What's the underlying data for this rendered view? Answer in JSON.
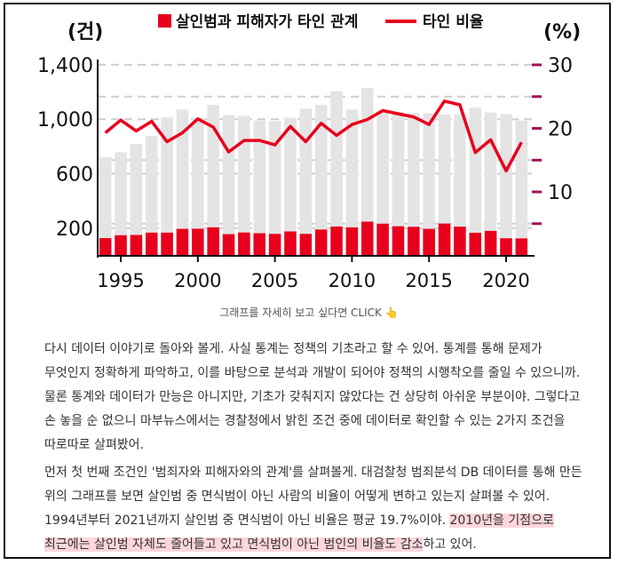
{
  "chart_data": {
    "type": "bar+line",
    "legend": [
      {
        "name": "살인범과 피해자가 타인 관계",
        "kind": "bar",
        "color": "#e8001c"
      },
      {
        "name": "타인 비율",
        "kind": "line",
        "color": "#e8001c"
      }
    ],
    "left_axis_label": "(건)",
    "right_axis_label": "(%)",
    "left_ticks": [
      "1,400",
      "1,000",
      "600",
      "200"
    ],
    "left_tick_values": [
      1400,
      1000,
      600,
      200
    ],
    "right_ticks": [
      "30",
      "20",
      "10"
    ],
    "right_tick_values": [
      30,
      20,
      10
    ],
    "right_minor_values": [
      25,
      15,
      5
    ],
    "left_ylim": [
      0,
      1400
    ],
    "right_ylim": [
      0,
      30
    ],
    "x_tick_labels": [
      "1995",
      "2000",
      "2005",
      "2010",
      "2015",
      "2020"
    ],
    "years": [
      1994,
      1995,
      1996,
      1997,
      1998,
      1999,
      2000,
      2001,
      2002,
      2003,
      2004,
      2005,
      2006,
      2007,
      2008,
      2009,
      2010,
      2011,
      2012,
      2013,
      2014,
      2015,
      2016,
      2017,
      2018,
      2019,
      2020,
      2021
    ],
    "total_murders": [
      722,
      757,
      818,
      877,
      1013,
      1071,
      1012,
      1106,
      1030,
      1025,
      990,
      986,
      1011,
      1077,
      1105,
      1204,
      1070,
      1230,
      1046,
      1055,
      1047,
      1044,
      1035,
      1037,
      1085,
      1050,
      1038,
      990
    ],
    "stranger_cases": [
      127,
      148,
      150,
      167,
      167,
      195,
      196,
      206,
      156,
      168,
      163,
      158,
      176,
      158,
      190,
      212,
      206,
      248,
      233,
      214,
      210,
      195,
      234,
      211,
      166,
      180,
      126,
      125
    ],
    "stranger_ratio": [
      19.3,
      21.3,
      19.6,
      21.1,
      17.9,
      19.3,
      21.5,
      20.2,
      16.3,
      18.1,
      18.1,
      17.4,
      20.3,
      17.9,
      20.8,
      18.9,
      20.6,
      21.4,
      22.8,
      22.3,
      21.8,
      20.6,
      24.3,
      23.7,
      16.2,
      18.2,
      13.3,
      17.8
    ]
  },
  "caption": "그래프를 자세히 보고 싶다면 CLICK 👆",
  "paragraph1": "다시 데이터 이야기로 돌아와 볼게. 사실 통계는 정책의 기초라고 할 수 있어. 통계를 통해 문제가 무엇인지 정확하게 파악하고, 이를 바탕으로 분석과 개발이 되어야 정책의 시행착오를 줄일 수 있으니까. 물론 통계와 데이터가 만능은 아니지만, 기초가 갖춰지지 않았다는 건 상당히 아쉬운 부분이야. 그렇다고 손 놓을 순 없으니 마부뉴스에서는 경찰청에서 밝힌 조건 중에 데이터로 확인할 수 있는 2가지 조건을 따로따로 살펴봤어.",
  "paragraph2_plain": "먼저 첫 번째 조건인 '범죄자와 피해자와의 관계'를 살펴볼게. 대검찰청 범죄분석 DB 데이터를 통해 만든 위의 그래프를 보면 살인범 중 면식범이 아닌 사람의 비율이 어떻게 변하고 있는지 살펴볼 수 있어. 1994년부터 2021년까지 살인범 중 면식범이 아닌 비율은 평균 19.7%이야. ",
  "paragraph2_highlight": "2010년을 기점으로 최근에는 살인범 자체도 줄어들고 있고 면식범이 아닌 범인의 비율도 감소",
  "paragraph2_end": "하고 있어.",
  "colors": {
    "red": "#e8001c",
    "gray_bar": "#e4e4e4",
    "grid": "#cfcfcf",
    "right_tick": "#a0135a",
    "highlight": "#fcd6dc"
  }
}
